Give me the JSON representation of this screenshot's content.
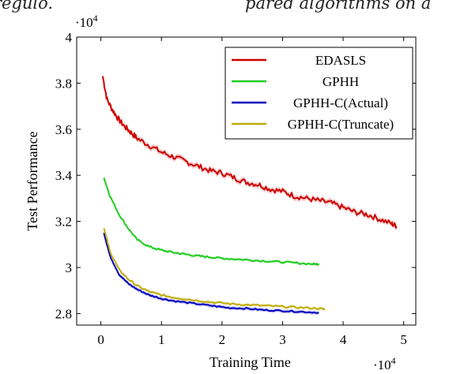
{
  "page": {
    "fragment_left": "regulo.",
    "fragment_right": "pared algorithms on a"
  },
  "chart_data": {
    "type": "line",
    "title": "",
    "xlabel": "Training Time",
    "ylabel": "Test Performance",
    "x_multiplier": "·10",
    "x_multiplier_exp": "4",
    "y_multiplier": "·10",
    "y_multiplier_exp": "4",
    "xlim": [
      -0.4,
      5.2
    ],
    "ylim": [
      2.75,
      4.0
    ],
    "x_ticks": [
      {
        "value": 0,
        "label": "0"
      },
      {
        "value": 1,
        "label": "1"
      },
      {
        "value": 2,
        "label": "2"
      },
      {
        "value": 3,
        "label": "3"
      },
      {
        "value": 4,
        "label": "4"
      },
      {
        "value": 5,
        "label": "5"
      }
    ],
    "y_ticks": [
      {
        "value": 2.8,
        "label": "2.8"
      },
      {
        "value": 3.0,
        "label": "3"
      },
      {
        "value": 3.2,
        "label": "3.2"
      },
      {
        "value": 3.4,
        "label": "3.4"
      },
      {
        "value": 3.6,
        "label": "3.6"
      },
      {
        "value": 3.8,
        "label": "3.8"
      },
      {
        "value": 4.0,
        "label": "4"
      }
    ],
    "grid": false,
    "legend_position": "top-right",
    "series": [
      {
        "name": "EDASLS",
        "color": "#cc0000",
        "band_color": "#f4b6b6",
        "x": [
          0.03,
          0.1,
          0.2,
          0.3,
          0.4,
          0.5,
          0.6,
          0.8,
          1.0,
          1.2,
          1.4,
          1.6,
          1.8,
          2.0,
          2.2,
          2.4,
          2.6,
          2.8,
          3.0,
          3.2,
          3.4,
          3.6,
          3.8,
          4.0,
          4.2,
          4.4,
          4.6,
          4.8,
          4.88
        ],
        "y": [
          3.83,
          3.73,
          3.68,
          3.64,
          3.61,
          3.585,
          3.56,
          3.53,
          3.5,
          3.48,
          3.46,
          3.44,
          3.42,
          3.41,
          3.39,
          3.37,
          3.36,
          3.34,
          3.33,
          3.31,
          3.3,
          3.29,
          3.28,
          3.26,
          3.24,
          3.23,
          3.21,
          3.19,
          3.18
        ]
      },
      {
        "name": "GPHH",
        "color": "#22cc22",
        "band_color": "#b8efb8",
        "x": [
          0.05,
          0.15,
          0.3,
          0.45,
          0.6,
          0.8,
          1.0,
          1.2,
          1.4,
          1.6,
          1.8,
          2.0,
          2.3,
          2.6,
          2.9,
          3.2,
          3.5,
          3.6
        ],
        "y": [
          3.39,
          3.31,
          3.23,
          3.17,
          3.12,
          3.09,
          3.075,
          3.065,
          3.057,
          3.05,
          3.045,
          3.04,
          3.035,
          3.03,
          3.025,
          3.02,
          3.015,
          3.015
        ]
      },
      {
        "name": "GPHH-C(Actual)",
        "color": "#0000bb",
        "band_color": "#b0b0f0",
        "x": [
          0.05,
          0.15,
          0.3,
          0.45,
          0.6,
          0.8,
          1.0,
          1.2,
          1.5,
          1.8,
          2.1,
          2.4,
          2.7,
          3.0,
          3.3,
          3.6
        ],
        "y": [
          3.15,
          3.05,
          2.97,
          2.93,
          2.905,
          2.88,
          2.865,
          2.855,
          2.845,
          2.835,
          2.825,
          2.822,
          2.815,
          2.812,
          2.808,
          2.804
        ]
      },
      {
        "name": "GPHH-C(Truncate)",
        "color": "#bfae10",
        "band_color": "#ece4a8",
        "x": [
          0.05,
          0.15,
          0.3,
          0.45,
          0.6,
          0.8,
          1.0,
          1.2,
          1.5,
          1.8,
          2.1,
          2.4,
          2.7,
          3.0,
          3.3,
          3.6,
          3.7
        ],
        "y": [
          3.17,
          3.07,
          2.99,
          2.95,
          2.92,
          2.895,
          2.88,
          2.87,
          2.86,
          2.85,
          2.843,
          2.838,
          2.834,
          2.83,
          2.826,
          2.822,
          2.82
        ]
      }
    ]
  }
}
